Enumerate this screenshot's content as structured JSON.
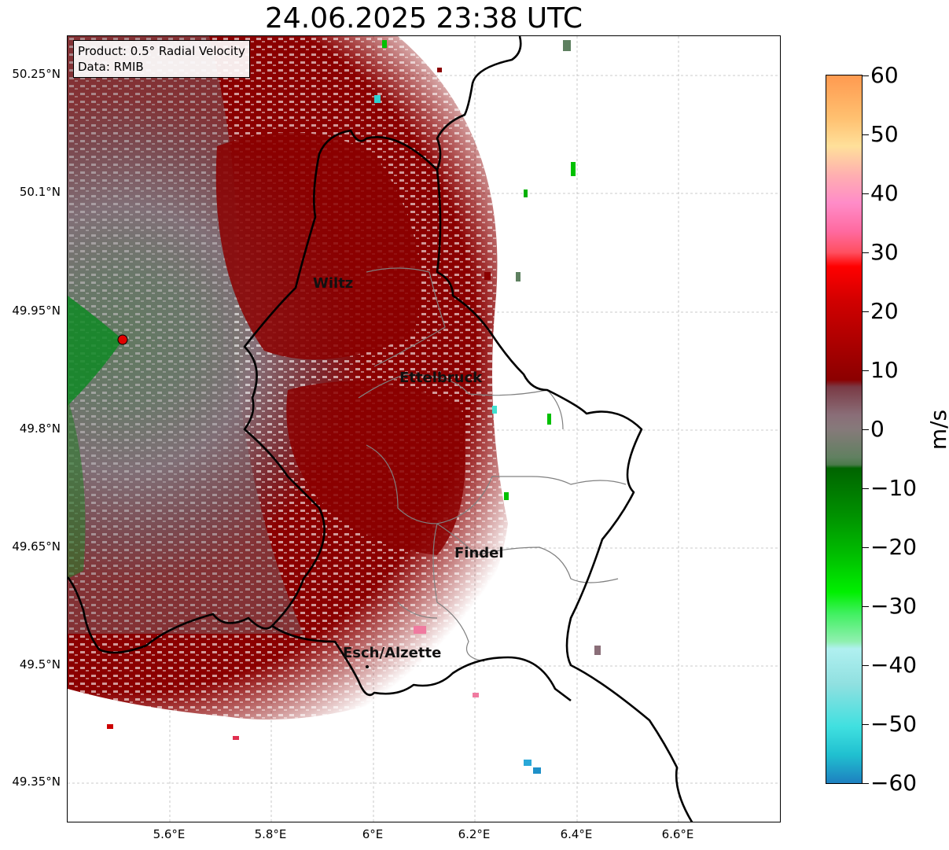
{
  "title": "24.06.2025 23:38 UTC",
  "info": {
    "product": "Product: 0.5° Radial Velocity",
    "source": "Data: RMIB"
  },
  "lat_ticks": [
    "50.25°N",
    "50.1°N",
    "49.95°N",
    "49.8°N",
    "49.65°N",
    "49.5°N",
    "49.35°N"
  ],
  "lon_ticks": [
    "5.6°E",
    "5.8°E",
    "6°E",
    "6.2°E",
    "6.4°E",
    "6.6°E"
  ],
  "cities": [
    "Wiltz",
    "Ettelbruck",
    "Findel",
    "Esch/Alzette"
  ],
  "colorbar": {
    "unit": "m/s",
    "ticks": [
      "60",
      "50",
      "40",
      "30",
      "20",
      "10",
      "0",
      "−10",
      "−20",
      "−30",
      "−40",
      "−50",
      "−60"
    ],
    "range": [
      -60,
      60
    ]
  },
  "colors": {
    "inbound_strong": "#2aa8d8",
    "inbound_mid": "#00c000",
    "near_zero_neg": "#5e8060",
    "near_zero_pos": "#8a6e78",
    "outbound_mid": "#8b0000",
    "outbound_strong": "#ff9a50",
    "radar_marker": "#e00000",
    "border": "#000000"
  }
}
